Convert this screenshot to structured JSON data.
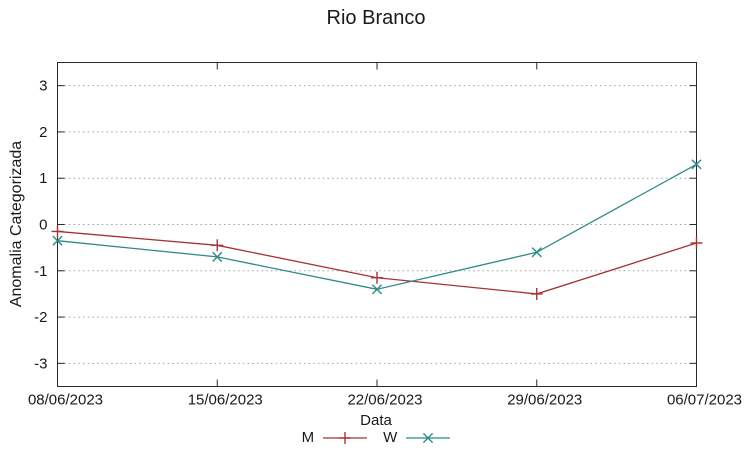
{
  "chart_data": {
    "type": "line",
    "title": "Rio Branco",
    "xlabel": "Data",
    "ylabel": "Anomalia Categorizada",
    "categories": [
      "08/06/2023",
      "15/06/2023",
      "22/06/2023",
      "29/06/2023",
      "06/07/2023"
    ],
    "series": [
      {
        "name": "M",
        "color": "#a53232",
        "marker": "plus",
        "values": [
          -0.15,
          -0.45,
          -1.15,
          -1.5,
          -0.4
        ]
      },
      {
        "name": "W",
        "color": "#2d8b87",
        "marker": "cross",
        "values": [
          -0.35,
          -0.7,
          -1.4,
          -0.6,
          1.3
        ]
      }
    ],
    "ylim": [
      -3.5,
      3.5
    ],
    "yticks": [
      -3,
      -2,
      -1,
      0,
      1,
      2,
      3
    ],
    "grid": "horizontal-dotted",
    "legend_position": "bottom-center",
    "colors": {
      "grid": "#a0a0a0",
      "axis": "#2a2a2a",
      "text": "#1a1a1a",
      "background": "#ffffff"
    }
  }
}
